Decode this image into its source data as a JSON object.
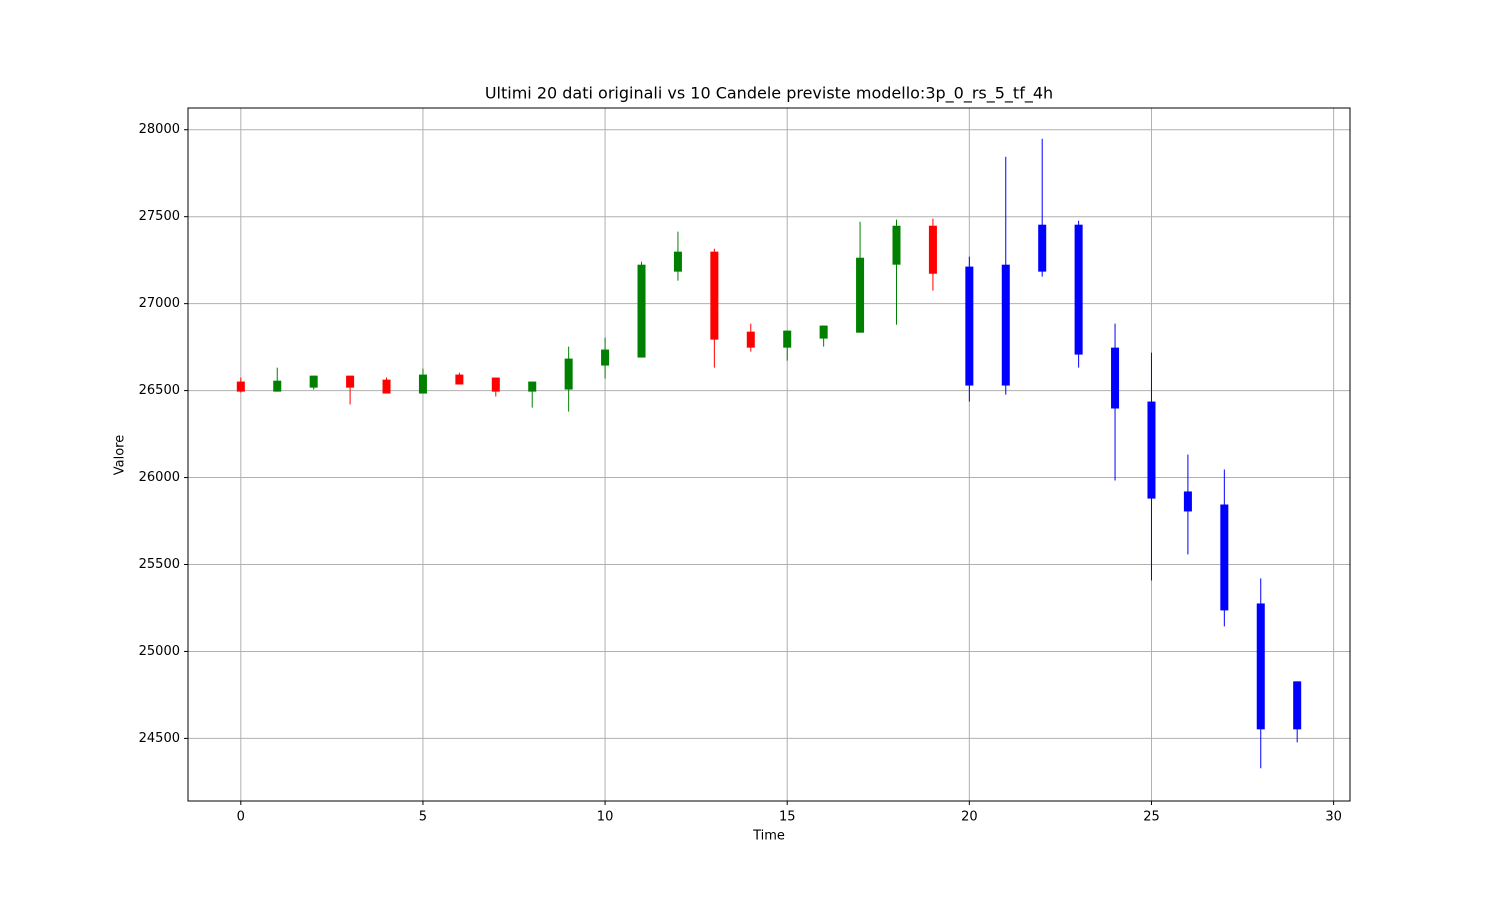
{
  "chart_data": {
    "type": "candlestick",
    "title": "Ultimi 20 dati originali vs 10 Candele previste modello:3p_0_rs_5_tf_4h",
    "x_label": "Time",
    "y_label": "Valore",
    "xlim": [
      -1.45,
      30.45
    ],
    "xticks": [
      0,
      5,
      10,
      15,
      20,
      25,
      30
    ],
    "ylim": [
      24140,
      28125
    ],
    "yticks": [
      24500,
      25000,
      25500,
      26000,
      26500,
      27000,
      27500,
      28000
    ],
    "grid": true,
    "original": {
      "up_color": "green",
      "down_color": "red",
      "x": [
        0,
        1,
        2,
        3,
        4,
        5,
        6,
        7,
        8,
        9,
        10,
        11,
        12,
        13,
        14,
        15,
        16,
        17,
        18,
        19
      ],
      "open": [
        26552,
        26494,
        26517,
        26586,
        26563,
        26483,
        26592,
        26575,
        26494,
        26506,
        26644,
        26690,
        27184,
        27299,
        26839,
        26747,
        26799,
        26833,
        27224,
        27448
      ],
      "high": [
        26575,
        26632,
        26586,
        26586,
        26575,
        26626,
        26603,
        26575,
        26552,
        26753,
        26805,
        27241,
        27414,
        27316,
        26885,
        26845,
        26874,
        27471,
        27483,
        27489
      ],
      "low": [
        26489,
        26494,
        26506,
        26420,
        26483,
        26483,
        26535,
        26466,
        26402,
        26379,
        26569,
        26690,
        27132,
        26632,
        26724,
        26672,
        26753,
        26833,
        26879,
        27075
      ],
      "close": [
        26494,
        26557,
        26586,
        26517,
        26483,
        26592,
        26535,
        26494,
        26552,
        26684,
        26736,
        27224,
        27299,
        26793,
        26747,
        26845,
        26874,
        27264,
        27448,
        27172
      ]
    },
    "forecast": {
      "color": "blue",
      "x": [
        20,
        21,
        22,
        23,
        24,
        25,
        26,
        27,
        28,
        29
      ],
      "open": [
        27213,
        27224,
        27454,
        27454,
        26747,
        26437,
        25920,
        25845,
        25276,
        24828
      ],
      "high": [
        27270,
        27845,
        27948,
        27477,
        26885,
        26718,
        26132,
        26046,
        25420,
        24828
      ],
      "low": [
        26437,
        26477,
        27155,
        26632,
        25983,
        25408,
        25558,
        25144,
        24328,
        24477
      ],
      "close": [
        26529,
        26529,
        27184,
        26707,
        26397,
        25879,
        25805,
        25236,
        24552,
        24552
      ]
    }
  }
}
